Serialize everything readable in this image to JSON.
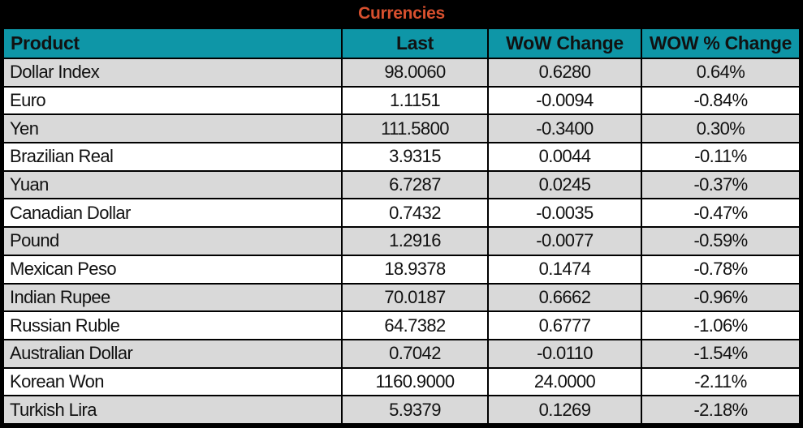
{
  "title": "Currencies",
  "colors": {
    "header_bg": "#0E96A7",
    "title_color": "#D8502E",
    "row_alt_bg": "#D9D9D9",
    "row_bg": "#FFFFFF",
    "border": "#000000",
    "text": "#111111"
  },
  "table": {
    "headers": [
      "Product",
      "Last",
      "WoW Change",
      "WOW % Change"
    ],
    "rows": [
      [
        "Dollar Index",
        "98.0060",
        "0.6280",
        "0.64%"
      ],
      [
        "Euro",
        "1.1151",
        "-0.0094",
        "-0.84%"
      ],
      [
        "Yen",
        "111.5800",
        "-0.3400",
        "0.30%"
      ],
      [
        "Brazilian Real",
        "3.9315",
        "0.0044",
        "-0.11%"
      ],
      [
        "Yuan",
        "6.7287",
        "0.0245",
        "-0.37%"
      ],
      [
        "Canadian Dollar",
        "0.7432",
        "-0.0035",
        "-0.47%"
      ],
      [
        "Pound",
        "1.2916",
        "-0.0077",
        "-0.59%"
      ],
      [
        "Mexican Peso",
        "18.9378",
        "0.1474",
        "-0.78%"
      ],
      [
        "Indian Rupee",
        "70.0187",
        "0.6662",
        "-0.96%"
      ],
      [
        "Russian Ruble",
        "64.7382",
        "0.6777",
        "-1.06%"
      ],
      [
        "Australian Dollar",
        "0.7042",
        "-0.0110",
        "-1.54%"
      ],
      [
        "Korean Won",
        "1160.9000",
        "24.0000",
        "-2.11%"
      ],
      [
        "Turkish Lira",
        "5.9379",
        "0.1269",
        "-2.18%"
      ]
    ]
  },
  "chart_data": {
    "type": "table",
    "title": "Currencies",
    "columns": [
      "Product",
      "Last",
      "WoW Change",
      "WOW % Change"
    ],
    "rows": [
      {
        "product": "Dollar Index",
        "last": 98.006,
        "wow_change": 0.628,
        "wow_pct_change": 0.64
      },
      {
        "product": "Euro",
        "last": 1.1151,
        "wow_change": -0.0094,
        "wow_pct_change": -0.84
      },
      {
        "product": "Yen",
        "last": 111.58,
        "wow_change": -0.34,
        "wow_pct_change": 0.3
      },
      {
        "product": "Brazilian Real",
        "last": 3.9315,
        "wow_change": 0.0044,
        "wow_pct_change": -0.11
      },
      {
        "product": "Yuan",
        "last": 6.7287,
        "wow_change": 0.0245,
        "wow_pct_change": -0.37
      },
      {
        "product": "Canadian Dollar",
        "last": 0.7432,
        "wow_change": -0.0035,
        "wow_pct_change": -0.47
      },
      {
        "product": "Pound",
        "last": 1.2916,
        "wow_change": -0.0077,
        "wow_pct_change": -0.59
      },
      {
        "product": "Mexican Peso",
        "last": 18.9378,
        "wow_change": 0.1474,
        "wow_pct_change": -0.78
      },
      {
        "product": "Indian Rupee",
        "last": 70.0187,
        "wow_change": 0.6662,
        "wow_pct_change": -0.96
      },
      {
        "product": "Russian Ruble",
        "last": 64.7382,
        "wow_change": 0.6777,
        "wow_pct_change": -1.06
      },
      {
        "product": "Australian Dollar",
        "last": 0.7042,
        "wow_change": -0.011,
        "wow_pct_change": -1.54
      },
      {
        "product": "Korean Won",
        "last": 1160.9,
        "wow_change": 24.0,
        "wow_pct_change": -2.11
      },
      {
        "product": "Turkish Lira",
        "last": 5.9379,
        "wow_change": 0.1269,
        "wow_pct_change": -2.18
      }
    ],
    "pct_unit": "%"
  }
}
